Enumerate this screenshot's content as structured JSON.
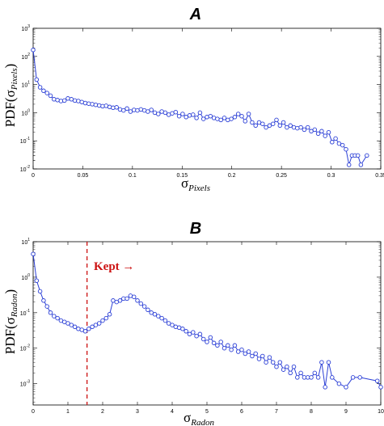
{
  "colors": {
    "series": "#2b3fd6",
    "marker_fill": "#ffffff",
    "annotation": "#cc1111",
    "axis": "#000000"
  },
  "chart_data": [
    {
      "type": "line",
      "panel_label": "A",
      "xlabel": "σ",
      "xlabel_sub": "Pixels",
      "ylabel": "PDF(σ",
      "ylabel_sub": "Pixels",
      "ylabel_close": ")",
      "xlim": [
        0,
        0.35
      ],
      "ylim_exp": [
        -2,
        3
      ],
      "yscale": "log",
      "xticks": [
        "0",
        "0.05",
        "0.1",
        "0.15",
        "0.2",
        "0.25",
        "0.3",
        "0.35"
      ],
      "xtick_values": [
        0,
        0.05,
        0.1,
        0.15,
        0.2,
        0.25,
        0.3,
        0.35
      ],
      "yticks": [
        "10",
        "10",
        "10",
        "10",
        "10",
        "10"
      ],
      "ytick_exps": [
        "-2",
        "-1",
        "0",
        "1",
        "2",
        "3"
      ],
      "series": [
        {
          "x": [
            0.0,
            0.0035,
            0.007,
            0.0105,
            0.014,
            0.0175,
            0.021,
            0.0245,
            0.028,
            0.0315,
            0.035,
            0.0385,
            0.042,
            0.0455,
            0.049,
            0.0525,
            0.056,
            0.0595,
            0.063,
            0.0665,
            0.07,
            0.0735,
            0.077,
            0.0805,
            0.084,
            0.0875,
            0.091,
            0.0945,
            0.098,
            0.1015,
            0.105,
            0.1085,
            0.112,
            0.1155,
            0.119,
            0.1225,
            0.126,
            0.1295,
            0.133,
            0.1365,
            0.14,
            0.1435,
            0.147,
            0.1505,
            0.154,
            0.1575,
            0.161,
            0.1645,
            0.168,
            0.1715,
            0.175,
            0.1785,
            0.182,
            0.1855,
            0.189,
            0.1925,
            0.196,
            0.1995,
            0.203,
            0.2065,
            0.21,
            0.2135,
            0.217,
            0.2205,
            0.224,
            0.2275,
            0.231,
            0.2345,
            0.238,
            0.2415,
            0.245,
            0.2485,
            0.252,
            0.2555,
            0.259,
            0.2625,
            0.266,
            0.2695,
            0.273,
            0.2765,
            0.28,
            0.2835,
            0.287,
            0.2905,
            0.294,
            0.2975,
            0.301,
            0.3045,
            0.308,
            0.3115,
            0.315,
            0.318,
            0.321,
            0.324,
            0.327,
            0.33,
            0.336
          ],
          "y": [
            170,
            15,
            8,
            6,
            5,
            4,
            3,
            2.8,
            2.6,
            2.7,
            3.2,
            3.0,
            2.7,
            2.6,
            2.4,
            2.2,
            2.1,
            2.0,
            1.9,
            1.8,
            1.7,
            1.75,
            1.6,
            1.5,
            1.55,
            1.3,
            1.2,
            1.4,
            1.1,
            1.25,
            1.2,
            1.3,
            1.2,
            1.1,
            1.25,
            1.0,
            0.9,
            1.1,
            1.0,
            0.85,
            0.95,
            1.05,
            0.75,
            0.9,
            0.7,
            0.8,
            0.85,
            0.65,
            1.0,
            0.6,
            0.7,
            0.75,
            0.65,
            0.6,
            0.55,
            0.65,
            0.55,
            0.6,
            0.7,
            0.9,
            0.75,
            0.5,
            0.9,
            0.45,
            0.35,
            0.45,
            0.4,
            0.3,
            0.35,
            0.4,
            0.55,
            0.35,
            0.45,
            0.3,
            0.35,
            0.3,
            0.28,
            0.3,
            0.25,
            0.3,
            0.22,
            0.25,
            0.18,
            0.22,
            0.15,
            0.2,
            0.09,
            0.12,
            0.08,
            0.07,
            0.05,
            0.014,
            0.03,
            0.03,
            0.03,
            0.014,
            0.03
          ]
        }
      ]
    },
    {
      "type": "line",
      "panel_label": "B",
      "xlabel": "σ",
      "xlabel_sub": "Radon",
      "ylabel": "PDF(σ",
      "ylabel_sub": "Radon",
      "ylabel_close": ")",
      "xlim": [
        0,
        10
      ],
      "ylim_exp": [
        -3.6,
        1
      ],
      "yscale": "log",
      "xticks": [
        "0",
        "1",
        "2",
        "3",
        "4",
        "5",
        "6",
        "7",
        "8",
        "9",
        "10"
      ],
      "xtick_values": [
        0,
        1,
        2,
        3,
        4,
        5,
        6,
        7,
        8,
        9,
        10
      ],
      "yticks": [
        "10",
        "10",
        "10",
        "10",
        "10"
      ],
      "ytick_exps": [
        "-3",
        "-2",
        "-1",
        "0",
        "1"
      ],
      "threshold_x": 1.55,
      "annotation": "Kept →",
      "series": [
        {
          "x": [
            0.0,
            0.1,
            0.2,
            0.3,
            0.4,
            0.5,
            0.6,
            0.7,
            0.8,
            0.9,
            1.0,
            1.1,
            1.2,
            1.3,
            1.4,
            1.5,
            1.6,
            1.7,
            1.8,
            1.9,
            2.0,
            2.1,
            2.2,
            2.3,
            2.4,
            2.5,
            2.6,
            2.7,
            2.8,
            2.9,
            3.0,
            3.1,
            3.2,
            3.3,
            3.4,
            3.5,
            3.6,
            3.7,
            3.8,
            3.9,
            4.0,
            4.1,
            4.2,
            4.3,
            4.4,
            4.5,
            4.6,
            4.7,
            4.8,
            4.9,
            5.0,
            5.1,
            5.2,
            5.3,
            5.4,
            5.5,
            5.6,
            5.7,
            5.8,
            5.9,
            6.0,
            6.1,
            6.2,
            6.3,
            6.4,
            6.5,
            6.6,
            6.7,
            6.8,
            6.9,
            7.0,
            7.1,
            7.2,
            7.3,
            7.4,
            7.5,
            7.6,
            7.7,
            7.8,
            7.9,
            8.0,
            8.1,
            8.2,
            8.3,
            8.4,
            8.5,
            8.6,
            8.8,
            9.0,
            9.2,
            9.4,
            9.9,
            10.0
          ],
          "y": [
            4.5,
            0.8,
            0.4,
            0.22,
            0.15,
            0.1,
            0.08,
            0.07,
            0.06,
            0.055,
            0.05,
            0.045,
            0.04,
            0.035,
            0.033,
            0.03,
            0.035,
            0.04,
            0.045,
            0.05,
            0.06,
            0.07,
            0.09,
            0.22,
            0.2,
            0.22,
            0.25,
            0.25,
            0.3,
            0.28,
            0.22,
            0.18,
            0.15,
            0.12,
            0.1,
            0.09,
            0.08,
            0.07,
            0.06,
            0.05,
            0.045,
            0.04,
            0.038,
            0.035,
            0.03,
            0.025,
            0.028,
            0.022,
            0.025,
            0.018,
            0.015,
            0.02,
            0.014,
            0.012,
            0.015,
            0.01,
            0.012,
            0.009,
            0.012,
            0.008,
            0.009,
            0.007,
            0.008,
            0.006,
            0.007,
            0.005,
            0.006,
            0.004,
            0.0055,
            0.004,
            0.003,
            0.004,
            0.0025,
            0.003,
            0.002,
            0.003,
            0.0015,
            0.002,
            0.0015,
            0.0015,
            0.0015,
            0.002,
            0.0015,
            0.004,
            0.0008,
            0.004,
            0.0015,
            0.001,
            0.0008,
            0.0015,
            0.0015,
            0.0012,
            0.0008
          ]
        }
      ]
    }
  ]
}
